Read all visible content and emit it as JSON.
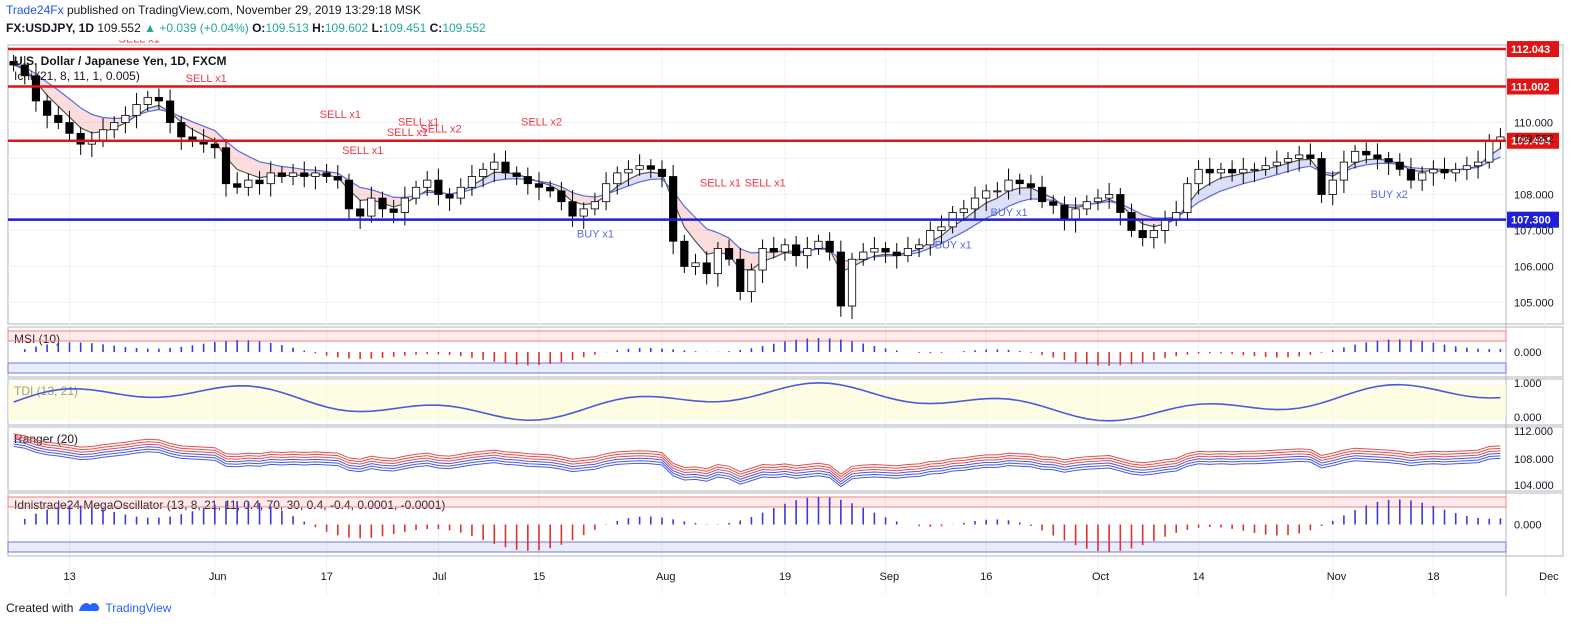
{
  "header": {
    "publisher": "Trade24Fx",
    "published_text": "published on TradingView.com, November 29, 2019 13:29:18 MSK",
    "symbol": "FX:USDJPY, 1D",
    "last": "109.552",
    "change": "+0.039 (+0.04%)",
    "o_label": "O:",
    "o": "109.513",
    "h_label": "H:",
    "h": "109.602",
    "l_label": "L:",
    "l": "109.451",
    "c_label": "C:",
    "c": "109.552"
  },
  "footer": {
    "created_with": "Created with",
    "brand": "TradingView"
  },
  "colors": {
    "red_line": "#e01414",
    "blue_line": "#1f1fd8",
    "up": "#ffffff",
    "down": "#000000",
    "sell": "#f23645",
    "buy": "#5b6bd8"
  },
  "chart_data": {
    "type": "candlestick",
    "title": "U.S. Dollar / Japanese Yen, 1D, FXCM",
    "indicator_label": "Ichi (21, 8, 11, 1, 0.005)",
    "y_range": [
      104.4,
      112.1
    ],
    "price_ticks": [
      "110.000",
      "109.552",
      "108.000",
      "107.000",
      "106.000",
      "105.000"
    ],
    "x_tick_labels": [
      {
        "label": "13",
        "i": 5
      },
      {
        "label": "Jun",
        "i": 18
      },
      {
        "label": "17",
        "i": 28
      },
      {
        "label": "Jul",
        "i": 38
      },
      {
        "label": "15",
        "i": 47
      },
      {
        "label": "Aug",
        "i": 58
      },
      {
        "label": "19",
        "i": 69
      },
      {
        "label": "Sep",
        "i": 78
      },
      {
        "label": "16",
        "i": 87
      },
      {
        "label": "Oct",
        "i": 97
      },
      {
        "label": "14",
        "i": 106
      },
      {
        "label": "Nov",
        "i": 118
      },
      {
        "label": "18",
        "i": 127
      },
      {
        "label": "Dec",
        "i": 137
      }
    ],
    "levels": [
      {
        "price": 112.043,
        "label": "112.043",
        "color": "#e01414"
      },
      {
        "price": 111.002,
        "label": "111.002",
        "color": "#e01414"
      },
      {
        "price": 109.494,
        "label": "109.494",
        "color": "#e01414"
      },
      {
        "price": 107.3,
        "label": "107.300",
        "color": "#1f1fd8"
      }
    ],
    "close_series": [
      111.6,
      111.3,
      110.6,
      110.2,
      110.0,
      109.7,
      109.4,
      109.5,
      109.8,
      110.0,
      110.2,
      110.5,
      110.7,
      110.6,
      110.0,
      109.6,
      109.5,
      109.4,
      109.3,
      108.3,
      108.2,
      108.4,
      108.3,
      108.6,
      108.5,
      108.6,
      108.5,
      108.6,
      108.5,
      108.4,
      107.6,
      107.4,
      107.9,
      107.6,
      107.5,
      107.9,
      108.2,
      108.4,
      108.0,
      107.9,
      108.2,
      108.5,
      108.7,
      108.9,
      108.6,
      108.5,
      108.3,
      108.2,
      108.1,
      107.8,
      107.4,
      107.6,
      107.8,
      108.3,
      108.6,
      108.7,
      108.8,
      108.7,
      108.5,
      106.7,
      106.0,
      106.1,
      105.8,
      106.5,
      106.2,
      105.3,
      105.9,
      106.5,
      106.4,
      106.6,
      106.3,
      106.5,
      106.7,
      106.4,
      104.9,
      106.2,
      106.4,
      106.5,
      106.4,
      106.3,
      106.5,
      106.6,
      107.0,
      107.1,
      107.5,
      107.6,
      107.9,
      108.1,
      108.1,
      108.4,
      108.3,
      108.2,
      107.8,
      107.7,
      107.3,
      107.6,
      107.8,
      107.9,
      108.0,
      107.5,
      107.0,
      106.8,
      107.0,
      107.3,
      107.5,
      108.3,
      108.7,
      108.6,
      108.7,
      108.6,
      108.7,
      108.7,
      108.8,
      108.9,
      109.0,
      109.1,
      109.0,
      108.0,
      108.4,
      108.9,
      109.2,
      109.1,
      109.0,
      108.9,
      108.7,
      108.4,
      108.6,
      108.7,
      108.6,
      108.7,
      108.8,
      108.9,
      109.5,
      109.6
    ],
    "signals": [
      {
        "label": "SELL x1",
        "i": 11,
        "side": "sell"
      },
      {
        "label": "SELL x2",
        "i": 13,
        "side": "sell"
      },
      {
        "label": "SELL x1",
        "i": 17,
        "side": "sell"
      },
      {
        "label": "SELL x1",
        "i": 29,
        "side": "sell"
      },
      {
        "label": "SELL x1",
        "i": 31,
        "side": "sell"
      },
      {
        "label": "SELL x1",
        "i": 35,
        "side": "sell"
      },
      {
        "label": "SELL x2",
        "i": 38,
        "side": "sell"
      },
      {
        "label": "SELL x1",
        "i": 36,
        "side": "sell"
      },
      {
        "label": "SELL x2",
        "i": 47,
        "side": "sell"
      },
      {
        "label": "BUY x1",
        "i": 52,
        "side": "buy"
      },
      {
        "label": "SELL x1",
        "i": 63,
        "side": "sell"
      },
      {
        "label": "SELL x1",
        "i": 67,
        "side": "sell"
      },
      {
        "label": "BUY x1",
        "i": 84,
        "side": "buy"
      },
      {
        "label": "BUY x1",
        "i": 89,
        "side": "buy"
      },
      {
        "label": "BUY x2",
        "i": 123,
        "side": "buy"
      }
    ],
    "panes": [
      {
        "label": "MSI (10)",
        "ticks": [
          "0.000"
        ]
      },
      {
        "label": "TDI (13, 21)",
        "ticks": [
          "1.000",
          "0.000"
        ]
      },
      {
        "label": "Ranger (20)",
        "ticks": [
          "112.000",
          "108.000",
          "104.000"
        ]
      },
      {
        "label": "Idnistrade24 MegaOscillator (13, 8, 21, 11, 0.4, 70, 30, 0.4, -0.4, 0.0001, -0.0001)",
        "ticks": [
          "0.000"
        ]
      }
    ]
  }
}
